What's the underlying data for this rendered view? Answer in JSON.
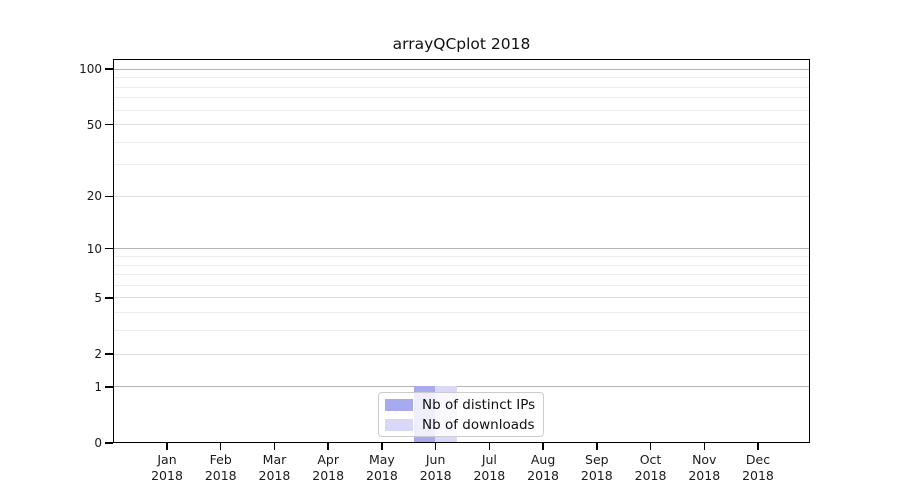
{
  "chart_data": {
    "type": "bar",
    "title": "arrayQCplot 2018",
    "x": {
      "months": [
        "Jan",
        "Feb",
        "Mar",
        "Apr",
        "May",
        "Jun",
        "Jul",
        "Aug",
        "Sep",
        "Oct",
        "Nov",
        "Dec"
      ],
      "year": "2018"
    },
    "y_axis": {
      "scale": "log1p",
      "tick_values": [
        0,
        1,
        2,
        5,
        10,
        20,
        50,
        100
      ],
      "tick_labels": [
        "0",
        "1",
        "2",
        "5",
        "10",
        "20",
        "50",
        "100"
      ],
      "decade_gridlines": [
        1,
        10,
        100
      ],
      "mid_gridlines": [
        2,
        5,
        20,
        50
      ],
      "minor_gridlines": [
        3,
        4,
        6,
        7,
        8,
        9,
        30,
        40,
        60,
        70,
        80,
        90
      ],
      "ylim": [
        0,
        115
      ],
      "grid": "horizontal only"
    },
    "series": [
      {
        "name": "Nb of distinct IPs",
        "color": "#a9a9f0",
        "values": [
          0,
          0,
          0,
          0,
          0,
          1,
          0,
          0,
          0,
          0,
          0,
          0
        ]
      },
      {
        "name": "Nb of downloads",
        "color": "#d9d9f7",
        "values": [
          0,
          0,
          0,
          0,
          0,
          1,
          0,
          0,
          0,
          0,
          0,
          0
        ]
      }
    ],
    "legend": {
      "position": "lower center"
    }
  },
  "colors": {
    "spine": "#000000",
    "decade_grid": "#b5b5b5",
    "mid_grid": "#dddddd",
    "minor_grid": "#ececec",
    "text": "#1a1a1a",
    "legend_border": "#cccccc"
  }
}
